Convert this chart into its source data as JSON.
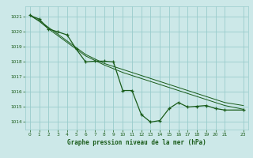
{
  "xlabel": "Graphe pression niveau de la mer (hPa)",
  "xlim": [
    -0.5,
    23.5
  ],
  "ylim": [
    1013.5,
    1021.7
  ],
  "yticks": [
    1014,
    1015,
    1016,
    1017,
    1018,
    1019,
    1020,
    1021
  ],
  "xticks": [
    0,
    1,
    2,
    3,
    4,
    5,
    6,
    7,
    8,
    9,
    10,
    11,
    12,
    13,
    14,
    15,
    16,
    17,
    18,
    19,
    20,
    21,
    23
  ],
  "xtick_labels": [
    "0",
    "1",
    "2",
    "3",
    "4",
    "5",
    "6",
    "7",
    "8",
    "9",
    "10",
    "11",
    "12",
    "13",
    "14",
    "15",
    "16",
    "17",
    "18",
    "19",
    "20",
    "21",
    "23"
  ],
  "background_color": "#cce8e8",
  "grid_color": "#99cccc",
  "line_color": "#1a5c1a",
  "series_main_x": [
    0,
    1,
    2,
    3,
    4,
    5,
    6,
    7,
    8,
    9,
    10,
    11,
    12,
    13,
    14,
    15,
    16,
    17,
    18,
    19,
    20,
    21,
    23
  ],
  "series_main_y": [
    1021.1,
    1020.85,
    1020.2,
    1020.0,
    1019.8,
    1018.85,
    1018.0,
    1018.05,
    1018.05,
    1018.0,
    1016.1,
    1016.1,
    1014.5,
    1014.0,
    1014.1,
    1014.9,
    1015.3,
    1015.0,
    1015.05,
    1015.1,
    1014.9,
    1014.8,
    1014.8
  ],
  "series_line1_x": [
    0,
    1,
    2,
    3,
    4,
    5,
    6,
    7,
    8,
    9,
    10,
    11,
    12,
    13,
    14,
    15,
    16,
    17,
    18,
    19,
    20,
    21,
    23
  ],
  "series_line1_y": [
    1021.1,
    1020.75,
    1020.3,
    1019.85,
    1019.4,
    1018.95,
    1018.5,
    1018.2,
    1017.9,
    1017.7,
    1017.5,
    1017.3,
    1017.1,
    1016.9,
    1016.7,
    1016.5,
    1016.3,
    1016.1,
    1015.9,
    1015.7,
    1015.5,
    1015.3,
    1015.1
  ],
  "series_line2_x": [
    0,
    1,
    2,
    3,
    4,
    5,
    6,
    7,
    8,
    9,
    10,
    11,
    12,
    13,
    14,
    15,
    16,
    17,
    18,
    19,
    20,
    21,
    23
  ],
  "series_line2_y": [
    1021.1,
    1020.7,
    1020.2,
    1019.75,
    1019.3,
    1018.85,
    1018.4,
    1018.1,
    1017.8,
    1017.55,
    1017.3,
    1017.1,
    1016.9,
    1016.7,
    1016.5,
    1016.3,
    1016.1,
    1015.9,
    1015.7,
    1015.5,
    1015.3,
    1015.1,
    1014.85
  ]
}
